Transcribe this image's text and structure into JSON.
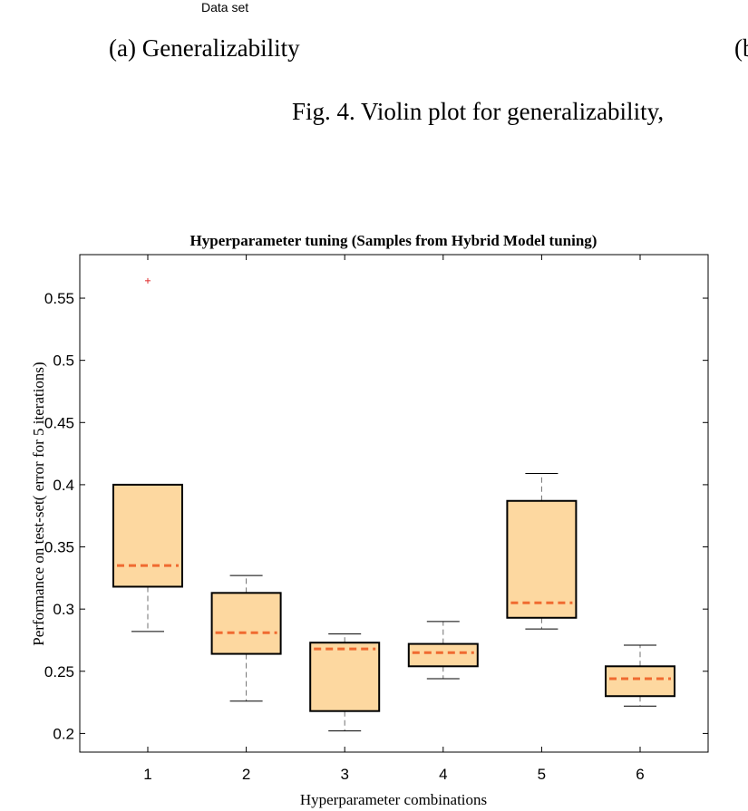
{
  "page": {
    "top_fragment": "Data set",
    "caption_a": "(a)  Generalizability",
    "caption_b": "(b",
    "figure_caption": "Fig. 4.   Violin plot for generalizability,"
  },
  "chart_data": {
    "type": "boxplot",
    "title": "Hyperparameter tuning (Samples from Hybrid Model tuning)",
    "xlabel": "Hyperparameter combinations",
    "ylabel": "Performance on test-set( error for 5 iterations)",
    "categories": [
      "1",
      "2",
      "3",
      "4",
      "5",
      "6"
    ],
    "ylim": [
      0.185,
      0.585
    ],
    "yticks": [
      0.2,
      0.25,
      0.3,
      0.35,
      0.4,
      0.45,
      0.5,
      0.55
    ],
    "ytick_labels": [
      "0.2",
      "0.25",
      "0.3",
      "0.35",
      "0.4",
      "0.45",
      "0.5",
      "0.55"
    ],
    "boxes": [
      {
        "whisker_low": 0.282,
        "q1": 0.318,
        "median": 0.335,
        "q3": 0.4,
        "whisker_high": 0.4,
        "outliers": [
          0.564
        ]
      },
      {
        "whisker_low": 0.226,
        "q1": 0.264,
        "median": 0.281,
        "q3": 0.313,
        "whisker_high": 0.327,
        "outliers": []
      },
      {
        "whisker_low": 0.202,
        "q1": 0.218,
        "median": 0.268,
        "q3": 0.273,
        "whisker_high": 0.28,
        "outliers": []
      },
      {
        "whisker_low": 0.244,
        "q1": 0.254,
        "median": 0.265,
        "q3": 0.272,
        "whisker_high": 0.29,
        "outliers": []
      },
      {
        "whisker_low": 0.284,
        "q1": 0.293,
        "median": 0.305,
        "q3": 0.387,
        "whisker_high": 0.409,
        "outliers": []
      },
      {
        "whisker_low": 0.222,
        "q1": 0.23,
        "median": 0.244,
        "q3": 0.254,
        "whisker_high": 0.271,
        "outliers": []
      }
    ],
    "colors": {
      "box_fill": "#fdd8a0",
      "box_edge": "#000000",
      "median": "#f06a30",
      "whisker": "#707070",
      "outlier": "#e03030",
      "axes": "#000000"
    },
    "grid": false
  }
}
